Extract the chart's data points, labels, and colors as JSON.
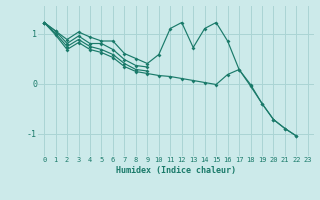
{
  "background_color": "#cceaea",
  "grid_color": "#aad4d4",
  "line_color": "#1a7a6a",
  "xlabel": "Humidex (Indice chaleur)",
  "xlim": [
    -0.5,
    23.5
  ],
  "ylim": [
    -1.45,
    1.55
  ],
  "yticks": [
    -1,
    0,
    1
  ],
  "xticks": [
    0,
    1,
    2,
    3,
    4,
    5,
    6,
    7,
    8,
    9,
    10,
    11,
    12,
    13,
    14,
    15,
    16,
    17,
    18,
    19,
    20,
    21,
    22,
    23
  ],
  "series": [
    [
      1.22,
      1.05,
      0.88,
      1.03,
      0.93,
      0.85,
      0.85,
      0.6,
      0.5,
      0.4,
      0.58,
      1.1,
      1.22,
      0.72,
      1.1,
      1.22,
      0.85,
      0.28,
      -0.05,
      null,
      null,
      null,
      null,
      null
    ],
    [
      1.22,
      1.05,
      0.8,
      0.95,
      0.8,
      0.8,
      0.68,
      0.48,
      0.36,
      0.33,
      null,
      null,
      null,
      null,
      null,
      null,
      null,
      null,
      null,
      null,
      null,
      null,
      null,
      null
    ],
    [
      1.22,
      1.0,
      0.74,
      0.88,
      0.74,
      0.68,
      0.58,
      0.4,
      0.28,
      0.25,
      null,
      null,
      null,
      null,
      null,
      null,
      null,
      null,
      null,
      null,
      null,
      null,
      null,
      null
    ],
    [
      1.22,
      0.97,
      0.68,
      0.82,
      0.68,
      0.62,
      0.52,
      0.34,
      0.24,
      0.2,
      0.16,
      0.14,
      0.1,
      0.06,
      0.02,
      -0.02,
      0.18,
      0.28,
      -0.02,
      -0.4,
      -0.72,
      -0.9,
      -1.05,
      null
    ]
  ],
  "series2": [
    [
      1.22,
      1.05,
      0.88,
      1.03,
      0.93,
      0.85,
      0.85,
      0.6,
      0.5,
      0.4,
      0.58,
      1.1,
      1.22,
      0.72,
      1.1,
      1.22,
      0.85,
      0.28,
      -0.05,
      -0.4,
      -0.72,
      -0.9,
      -1.05,
      null
    ]
  ]
}
